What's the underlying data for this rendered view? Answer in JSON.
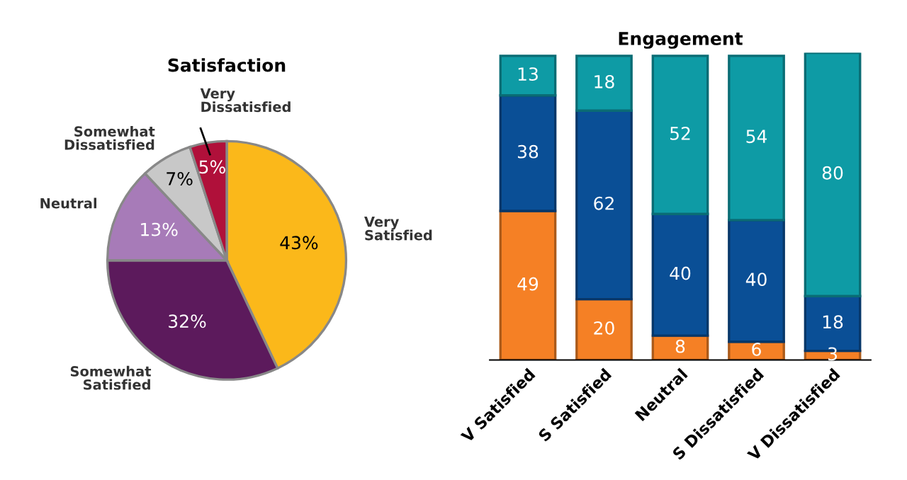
{
  "chart_data": [
    {
      "type": "pie",
      "title": "Satisfaction",
      "categories": [
        "Very Satisfied",
        "Somewhat Satisfied",
        "Neutral",
        "Somewhat Dissatisfied",
        "Very Dissatisfied"
      ],
      "values": [
        43,
        32,
        13,
        7,
        5
      ],
      "colors": [
        "#fbb81a",
        "#5c1a5c",
        "#a77bb8",
        "#c8c8c8",
        "#b0103a"
      ],
      "value_labels": [
        "43%",
        "32%",
        "13%",
        "7%",
        "5%"
      ]
    },
    {
      "type": "bar",
      "title": "Engagement",
      "stacked": true,
      "data_labels": true,
      "categories": [
        "V Satisfied",
        "S Satisfied",
        "Neutral",
        "S Dissatisfied",
        "V Dissatisfied"
      ],
      "ylim": [
        0,
        101
      ],
      "tick_labels": "x",
      "series": [
        {
          "color": "#f58025",
          "values": [
            49,
            20,
            8,
            6,
            3
          ]
        },
        {
          "color": "#0a4f96",
          "values": [
            38,
            62,
            40,
            40,
            18
          ]
        },
        {
          "color": "#0e9ba5",
          "values": [
            13,
            18,
            52,
            54,
            80
          ]
        }
      ]
    }
  ]
}
